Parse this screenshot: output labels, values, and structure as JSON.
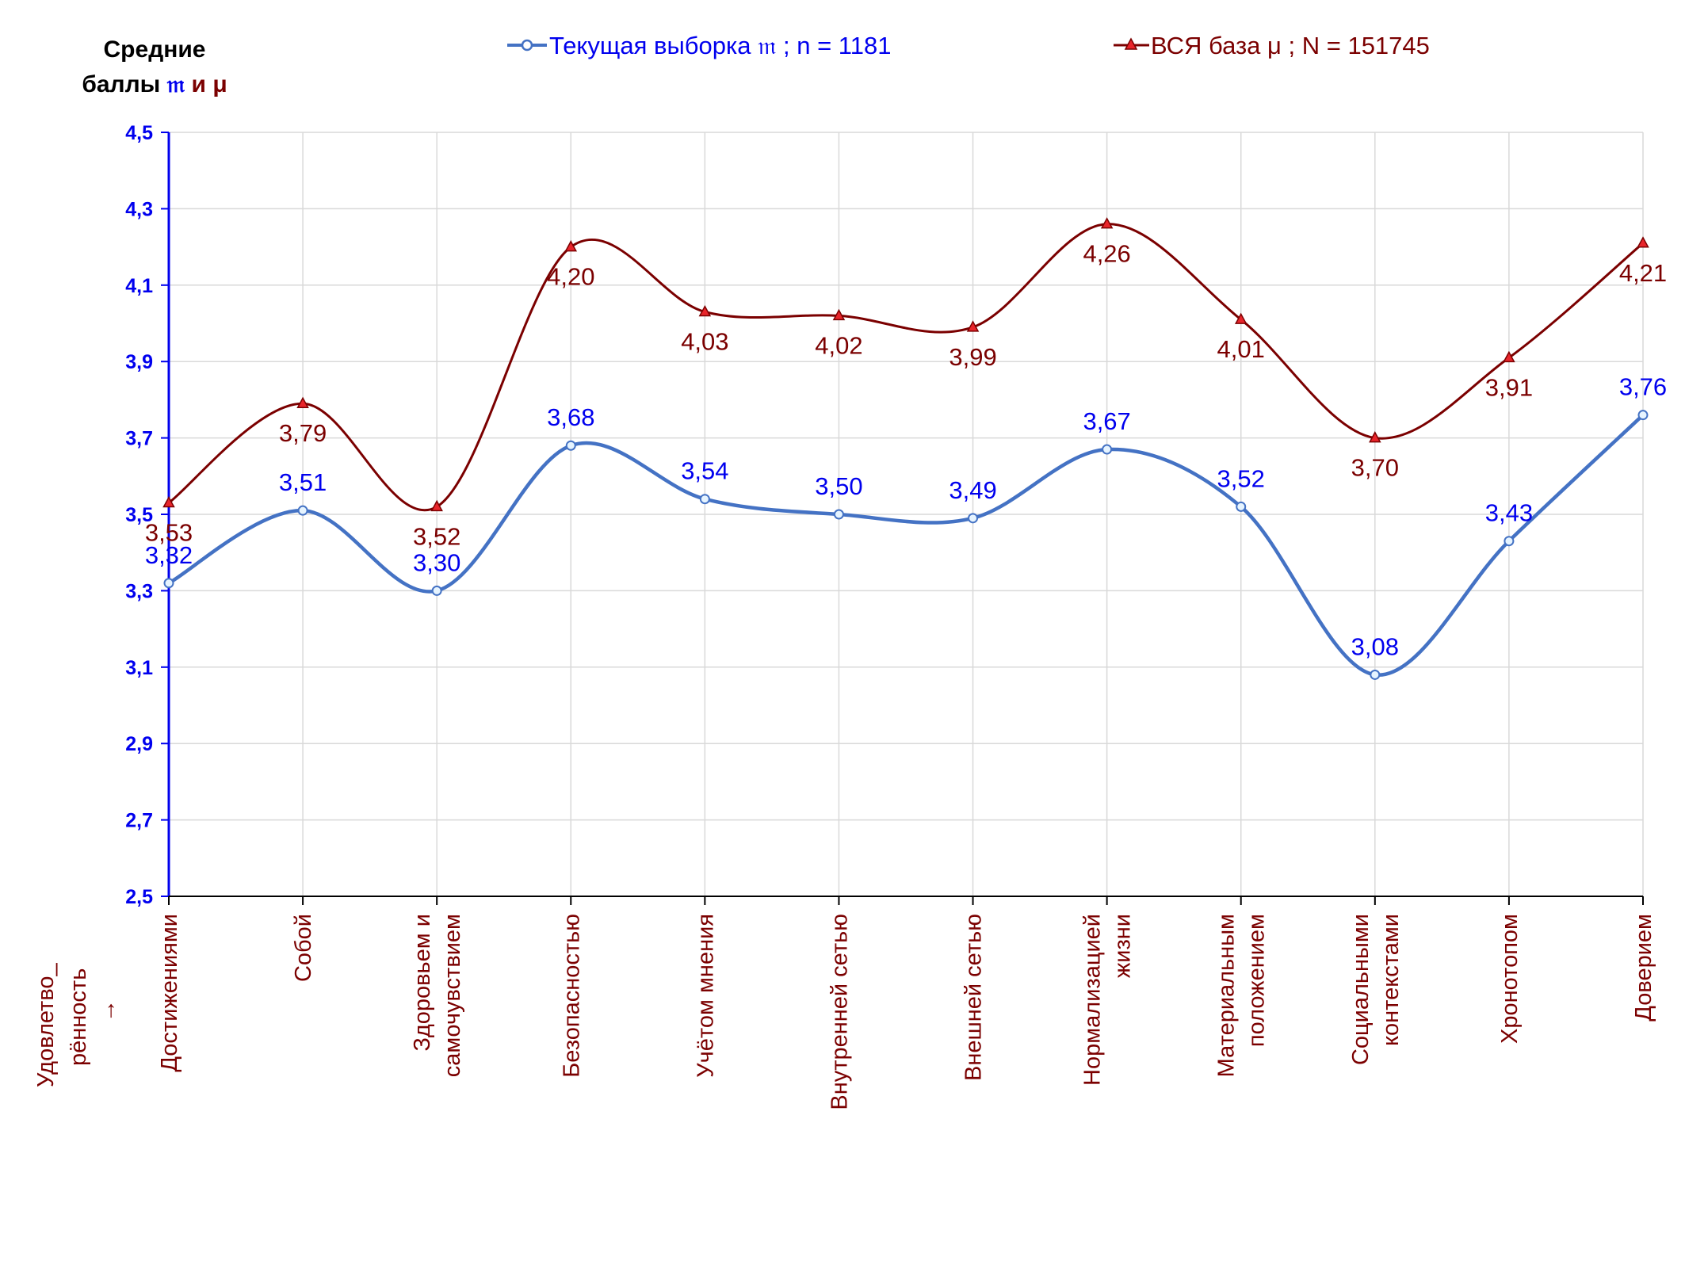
{
  "chart_data": {
    "type": "line",
    "y_title_line1": "Средние",
    "y_title_line2_prefix": "баллы",
    "y_title_sym1": "𝔪",
    "y_title_and": "и",
    "y_title_sym2": "μ",
    "x_title_line1": "Удовлетво_",
    "x_title_line2": "рённость",
    "x_title_arrow": "→",
    "ylim": [
      2.5,
      4.5
    ],
    "yticks": [
      "2,5",
      "2,7",
      "2,9",
      "3,1",
      "3,3",
      "3,5",
      "3,7",
      "3,9",
      "4,1",
      "4,3",
      "4,5"
    ],
    "grid": true,
    "legend_position": "top",
    "categories": [
      [
        "Достижениями"
      ],
      [
        "Собой"
      ],
      [
        "Здоровьем и",
        "самочувствием"
      ],
      [
        "Безопасностью"
      ],
      [
        "Учётом мнения"
      ],
      [
        "Внутренней сетью"
      ],
      [
        "Внешней сетью"
      ],
      [
        "Нормализацией",
        "жизни"
      ],
      [
        "Материальным",
        "положением"
      ],
      [
        "Социальными",
        "контекстами"
      ],
      [
        "Хронотопом"
      ],
      [
        "Доверием"
      ]
    ],
    "series": [
      {
        "name": "Текущая выборка 𝔪 ; n = 1181",
        "color": "#4472C4",
        "label_color": "#0000EE",
        "marker": "circle",
        "values": [
          3.32,
          3.51,
          3.3,
          3.68,
          3.54,
          3.5,
          3.49,
          3.67,
          3.52,
          3.08,
          3.43,
          3.76
        ],
        "labels": [
          "3,32",
          "3,51",
          "3,30",
          "3,68",
          "3,54",
          "3,50",
          "3,49",
          "3,67",
          "3,52",
          "3,08",
          "3,43",
          "3,76"
        ]
      },
      {
        "name": "ВСЯ база μ ; N = 151745",
        "color": "#7B0000",
        "label_color": "#7B0000",
        "marker": "triangle",
        "values": [
          3.53,
          3.79,
          3.52,
          4.2,
          4.03,
          4.02,
          3.99,
          4.26,
          4.01,
          3.7,
          3.91,
          4.21
        ],
        "labels": [
          "3,53",
          "3,79",
          "3,52",
          "4,20",
          "4,03",
          "4,02",
          "3,99",
          "4,26",
          "4,01",
          "3,70",
          "3,91",
          "4,21"
        ]
      }
    ],
    "colors": {
      "axis": "#0000EE",
      "grid": "#D9D9D9",
      "category_text": "#7B0000"
    }
  }
}
